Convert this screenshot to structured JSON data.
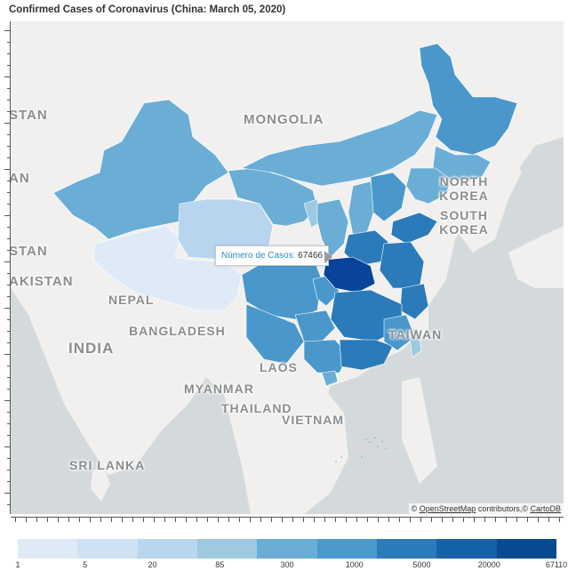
{
  "title": "Confirmed Cases of Coronavirus (China: March 05, 2020)",
  "map": {
    "country_labels": {
      "mongolia": "MONGOLIA",
      "north_korea": "NORTH KOREA",
      "south_korea": "SOUTH KOREA",
      "nepal": "NEPAL",
      "bangladesh": "BANGLADESH",
      "india": "INDIA",
      "laos": "LAOS",
      "myanmar": "MYANMAR",
      "thailand": "THAILAND",
      "vietnam": "VIETNAM",
      "sri_lanka": "SRI LANKA",
      "taiwan": "TAIWAN",
      "stan": "STAN",
      "stan2": "STAN",
      "akistan": "AKISTAN",
      "an": "AN"
    },
    "tooltip": {
      "key": "Número de Casos:",
      "value": "67466"
    },
    "attribution": {
      "prefix": "©",
      "osm": "OpenStreetMap",
      "contributors": "contributors,©",
      "carto": "CartoDB"
    }
  },
  "colorbar": {
    "colors": [
      "#deebf7",
      "#cfe1f2",
      "#b8d6ee",
      "#9ecae1",
      "#6aaed6",
      "#4b98cb",
      "#2b7bba",
      "#1562a9",
      "#084a91"
    ],
    "ticks": [
      "1",
      "5",
      "20",
      "85",
      "300",
      "1000",
      "5000",
      "20000",
      "67110"
    ]
  },
  "choropleth_colors": {
    "hubei": "#08459a",
    "very_high": "#2b7bba",
    "high": "#4a98cb",
    "mid": "#6aaed6",
    "low": "#9ecae1",
    "lowest": "#b7d5ee",
    "tibet": "#deebf7"
  }
}
